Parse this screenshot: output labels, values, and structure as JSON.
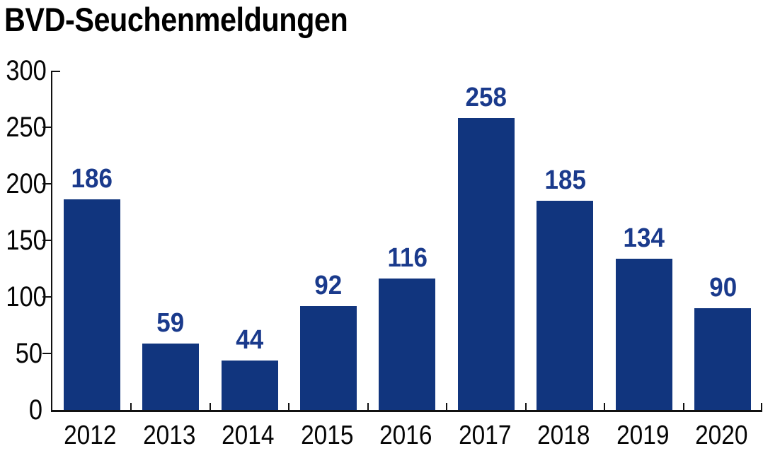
{
  "title": "BVD-Seuchenmeldungen",
  "chart_data": {
    "type": "bar",
    "title": "BVD-Seuchenmeldungen",
    "categories": [
      "2012",
      "2013",
      "2014",
      "2015",
      "2016",
      "2017",
      "2018",
      "2019",
      "2020"
    ],
    "values": [
      186,
      59,
      44,
      92,
      116,
      258,
      185,
      134,
      90
    ],
    "xlabel": "",
    "ylabel": "",
    "ylim": [
      0,
      300
    ],
    "yticks": [
      0,
      50,
      100,
      150,
      200,
      250,
      300
    ],
    "grid": false,
    "legend": null,
    "value_labels_shown": true,
    "bar_color": "#11357E",
    "value_label_color": "#1A3A8C",
    "axis_color": "#111111",
    "text_color": "#050505",
    "background_color": "#FFFFFF"
  }
}
